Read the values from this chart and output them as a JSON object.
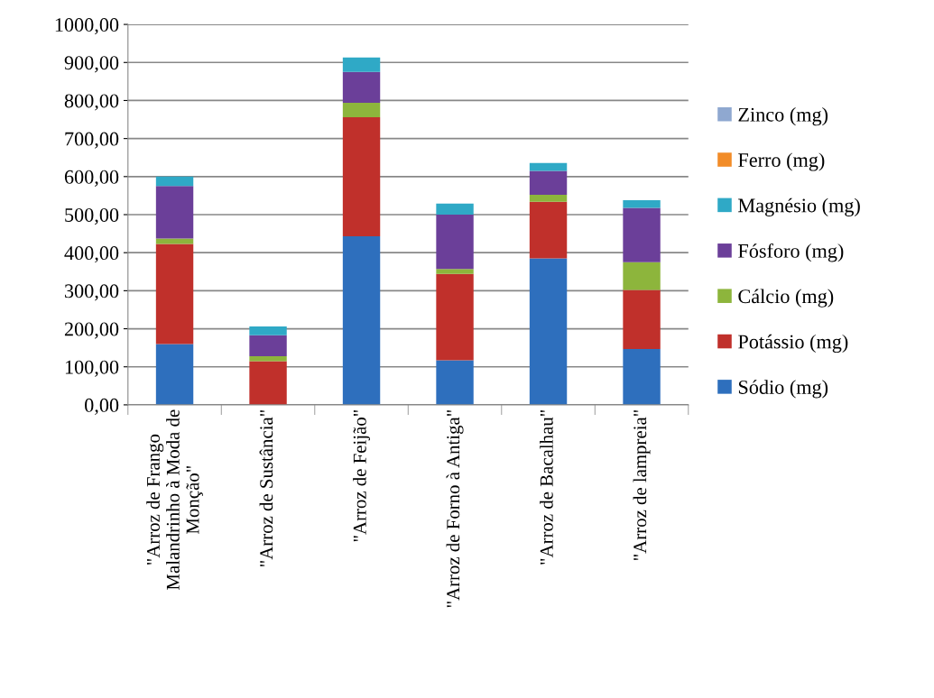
{
  "chart_data": {
    "type": "bar",
    "stacked": true,
    "categories": [
      "\"Arroz de Frango\nMalandrinho à Moda de\nMonção\"",
      "\"Arroz de Sustância\"",
      "\"Arroz de Feijão\"",
      "\"Arroz de Forno à Antiga\"",
      "\"Arroz de Bacalhau\"",
      "\"Arroz de lampreia\""
    ],
    "series": [
      {
        "name": "Sódio (mg)",
        "color": "#2e6fbd",
        "values": [
          160,
          0,
          443,
          117,
          385,
          147
        ]
      },
      {
        "name": "Potássio (mg)",
        "color": "#c0302b",
        "values": [
          263,
          115,
          313,
          227,
          149,
          155
        ]
      },
      {
        "name": "Cálcio (mg)",
        "color": "#8db53c",
        "values": [
          14,
          13,
          38,
          13,
          18,
          73
        ]
      },
      {
        "name": "Fósforo (mg)",
        "color": "#6b3f99",
        "values": [
          138,
          55,
          81,
          143,
          63,
          143
        ]
      },
      {
        "name": "Magnésio (mg)",
        "color": "#2fa9c6",
        "values": [
          25,
          23,
          38,
          29,
          21,
          20
        ]
      },
      {
        "name": "Ferro (mg)",
        "color": "#f28c28",
        "values": [
          null,
          null,
          null,
          null,
          null,
          null
        ]
      },
      {
        "name": "Zinco (mg)",
        "color": "#8fa8d0",
        "values": [
          null,
          null,
          null,
          null,
          null,
          null
        ]
      }
    ],
    "ylim": [
      0,
      1000
    ],
    "yticks": [
      {
        "value": 0,
        "label": "0,00"
      },
      {
        "value": 100,
        "label": "100,00"
      },
      {
        "value": 200,
        "label": "200,00"
      },
      {
        "value": 300,
        "label": "300,00"
      },
      {
        "value": 400,
        "label": "400,00"
      },
      {
        "value": 500,
        "label": "500,00"
      },
      {
        "value": 600,
        "label": "600,00"
      },
      {
        "value": 700,
        "label": "700,00"
      },
      {
        "value": 800,
        "label": "800,00"
      },
      {
        "value": 900,
        "label": "900,00"
      },
      {
        "value": 1000,
        "label": "1000,00"
      }
    ],
    "grid": "y",
    "legend": "right"
  }
}
